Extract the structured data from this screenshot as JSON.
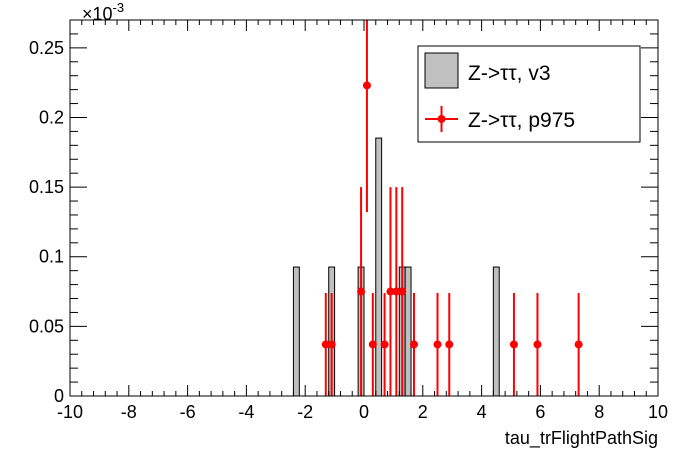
{
  "chart_data": {
    "type": "bar",
    "xlabel": "tau_trFlightPathSig",
    "ylabel": "",
    "y_exponent_label": "×10",
    "y_exponent_power": "-3",
    "xlim": [
      -10,
      10
    ],
    "ylim": [
      0,
      0.27
    ],
    "x_ticks": [
      -10,
      -8,
      -6,
      -4,
      -2,
      0,
      2,
      4,
      6,
      8,
      10
    ],
    "x_tick_labels": [
      "-10",
      "-8",
      "-6",
      "-4",
      "-2",
      "0",
      "2",
      "4",
      "6",
      "8",
      "10"
    ],
    "y_ticks": [
      0,
      0.05,
      0.1,
      0.15,
      0.2,
      0.25
    ],
    "y_tick_labels": [
      "0",
      "0.05",
      "0.1",
      "0.15",
      "0.2",
      "0.25"
    ],
    "grid": false,
    "legend_position": "top-right",
    "series": [
      {
        "name": "Z->ττ, v3",
        "style": "histogram",
        "color": "#c0c0c0",
        "edge_color": "#000000",
        "bin_width": 0.2,
        "bins": [
          {
            "x": -2.4,
            "value": 0.0926
          },
          {
            "x": -1.2,
            "value": 0.0926
          },
          {
            "x": -0.2,
            "value": 0.0926
          },
          {
            "x": 0.4,
            "value": 0.1852
          },
          {
            "x": 1.2,
            "value": 0.0926
          },
          {
            "x": 1.4,
            "value": 0.0926
          },
          {
            "x": 4.4,
            "value": 0.0926
          }
        ]
      },
      {
        "name": "Z->ττ, p975",
        "style": "errorbar",
        "color": "#ff0000",
        "points": [
          {
            "x": -1.3,
            "y": 0.037,
            "err": 0.037
          },
          {
            "x": -1.1,
            "y": 0.037,
            "err": 0.037
          },
          {
            "x": -0.1,
            "y": 0.075,
            "err": 0.075
          },
          {
            "x": 0.1,
            "y": 0.223,
            "err": 0.091
          },
          {
            "x": 0.3,
            "y": 0.037,
            "err": 0.037
          },
          {
            "x": 0.7,
            "y": 0.037,
            "err": 0.037
          },
          {
            "x": 0.9,
            "y": 0.075,
            "err": 0.075
          },
          {
            "x": 1.1,
            "y": 0.075,
            "err": 0.075
          },
          {
            "x": 1.3,
            "y": 0.075,
            "err": 0.075
          },
          {
            "x": 1.7,
            "y": 0.037,
            "err": 0.037
          },
          {
            "x": 2.5,
            "y": 0.037,
            "err": 0.037
          },
          {
            "x": 2.9,
            "y": 0.037,
            "err": 0.037
          },
          {
            "x": 5.1,
            "y": 0.037,
            "err": 0.037
          },
          {
            "x": 5.9,
            "y": 0.037,
            "err": 0.037
          },
          {
            "x": 7.3,
            "y": 0.037,
            "err": 0.037
          }
        ]
      }
    ]
  }
}
